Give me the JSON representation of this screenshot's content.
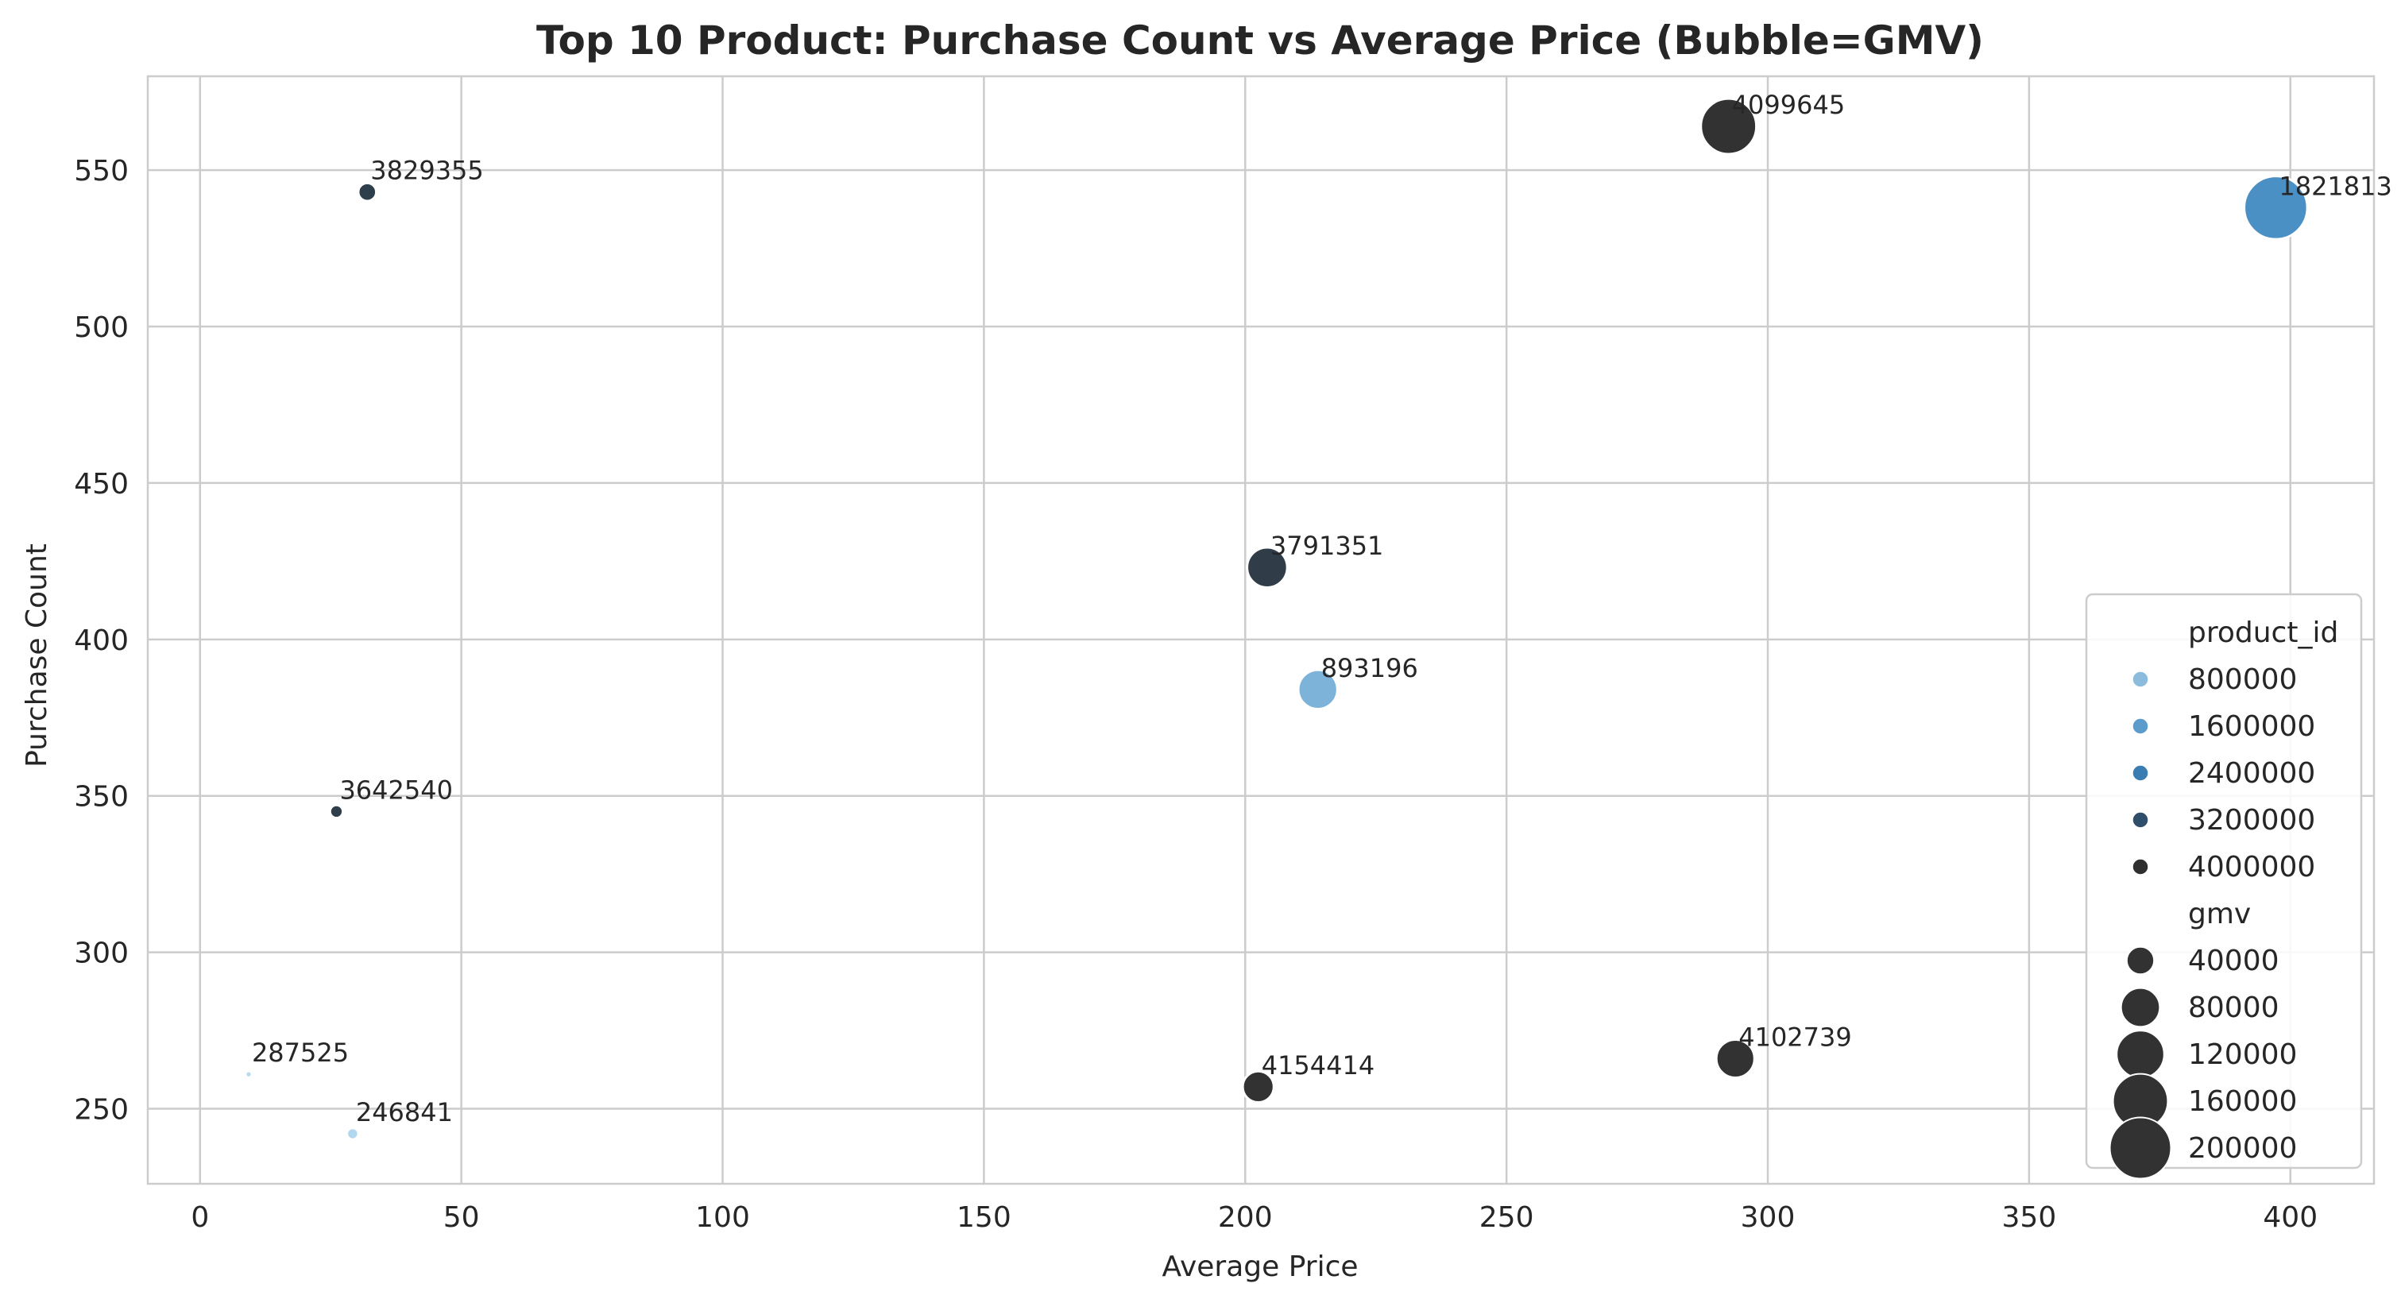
{
  "chart_data": {
    "type": "scatter",
    "title": "Top 10 Product: Purchase Count vs Average Price (Bubble=GMV)",
    "xlabel": "Average Price",
    "ylabel": "Purchase Count",
    "xlim": [
      -10,
      416
    ],
    "ylim": [
      226,
      580
    ],
    "x_ticks": [
      0,
      50,
      100,
      150,
      200,
      250,
      300,
      350,
      400
    ],
    "y_ticks": [
      250,
      300,
      350,
      400,
      450,
      500,
      550
    ],
    "grid": true,
    "legend_position": "lower-right",
    "hue_field": "product_id",
    "size_field": "gmv",
    "points": [
      {
        "label": "4099645",
        "x": 292.5,
        "y": 564,
        "product_id": 4099645,
        "gmv": 165000,
        "color": "#323232"
      },
      {
        "label": "1821813",
        "x": 397.2,
        "y": 538,
        "product_id": 1821813,
        "gmv": 213700,
        "color": "#4a90c5"
      },
      {
        "label": "3829355",
        "x": 32.0,
        "y": 543,
        "product_id": 3829355,
        "gmv": 17400,
        "color": "#2f3e4b"
      },
      {
        "label": "3791351",
        "x": 204.2,
        "y": 423,
        "product_id": 3791351,
        "gmv": 86400,
        "color": "#303d48"
      },
      {
        "label": "893196",
        "x": 213.9,
        "y": 384,
        "product_id": 893196,
        "gmv": 82100,
        "color": "#7db3d9"
      },
      {
        "label": "3642540",
        "x": 26.1,
        "y": 345,
        "product_id": 3642540,
        "gmv": 9000,
        "color": "#2f3e4b"
      },
      {
        "label": "287525",
        "x": 9.3,
        "y": 261,
        "product_id": 287525,
        "gmv": 2400,
        "color": "#b9dbef"
      },
      {
        "label": "246841",
        "x": 29.2,
        "y": 242,
        "product_id": 246841,
        "gmv": 7100,
        "color": "#b3d7ee"
      },
      {
        "label": "4154414",
        "x": 202.5,
        "y": 257,
        "product_id": 4154414,
        "gmv": 52000,
        "color": "#323232"
      },
      {
        "label": "4102739",
        "x": 293.8,
        "y": 266,
        "product_id": 4102739,
        "gmv": 78100,
        "color": "#323232"
      }
    ],
    "legend": {
      "hue_title": "product_id",
      "hue_entries": [
        {
          "label": "800000",
          "color": "#8bbcdd"
        },
        {
          "label": "1600000",
          "color": "#5b9ccc"
        },
        {
          "label": "2400000",
          "color": "#3a7db2"
        },
        {
          "label": "3200000",
          "color": "#2f4e6a"
        },
        {
          "label": "4000000",
          "color": "#2f2f2f"
        }
      ],
      "size_title": "gmv",
      "size_entries": [
        {
          "label": "40000",
          "value": 40000
        },
        {
          "label": "80000",
          "value": 80000
        },
        {
          "label": "120000",
          "value": 120000
        },
        {
          "label": "160000",
          "value": 160000
        },
        {
          "label": "200000",
          "value": 200000
        }
      ]
    }
  }
}
